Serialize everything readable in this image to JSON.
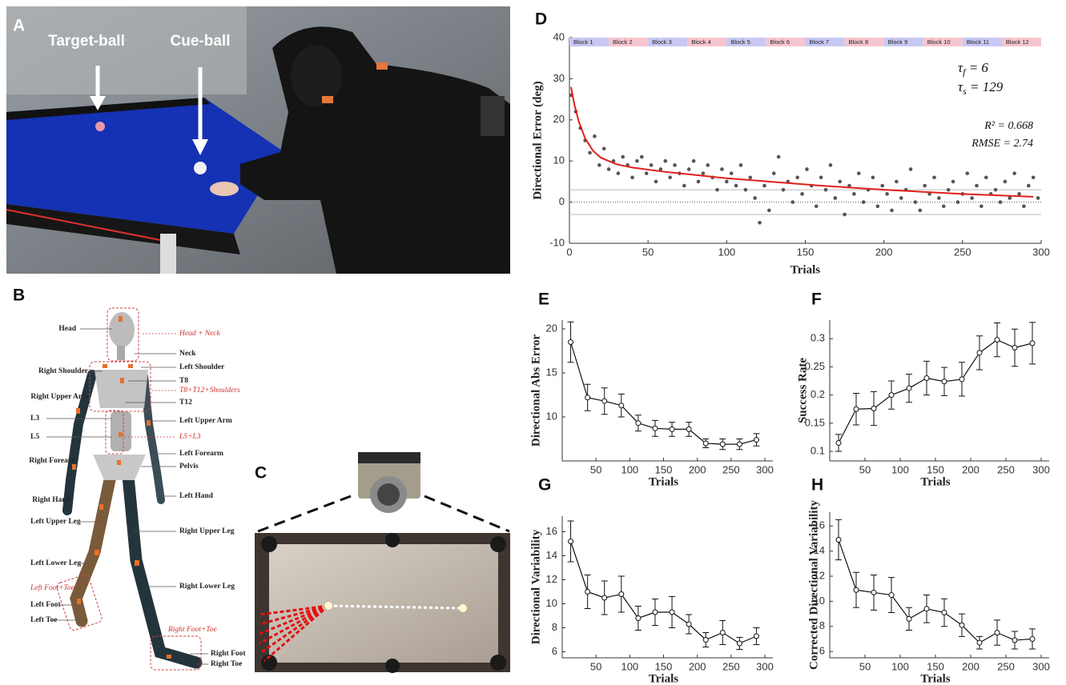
{
  "chart_data": [
    {
      "type": "scatter",
      "panel": "D",
      "x_label": "Trials",
      "y_label": "Directional Error (deg)",
      "x": [
        1,
        4,
        7,
        10,
        13,
        16,
        19,
        22,
        25,
        28,
        31,
        34,
        37,
        40,
        43,
        46,
        49,
        52,
        55,
        58,
        61,
        64,
        67,
        70,
        73,
        76,
        79,
        82,
        85,
        88,
        91,
        94,
        97,
        100,
        103,
        106,
        109,
        112,
        115,
        118,
        121,
        124,
        127,
        130,
        133,
        136,
        139,
        142,
        145,
        148,
        151,
        154,
        157,
        160,
        163,
        166,
        169,
        172,
        175,
        178,
        181,
        184,
        187,
        190,
        193,
        196,
        199,
        202,
        205,
        208,
        211,
        214,
        217,
        220,
        223,
        226,
        229,
        232,
        235,
        238,
        241,
        244,
        247,
        250,
        253,
        256,
        259,
        262,
        265,
        268,
        271,
        274,
        277,
        280,
        283,
        286,
        289,
        292,
        295,
        298
      ],
      "values": [
        26,
        22,
        18,
        15,
        12,
        16,
        9,
        13,
        8,
        10,
        7,
        11,
        9,
        6,
        10,
        11,
        7,
        9,
        5,
        8,
        10,
        6,
        9,
        7,
        4,
        8,
        10,
        5,
        7,
        9,
        6,
        3,
        8,
        5,
        7,
        4,
        9,
        3,
        6,
        1,
        -5,
        4,
        -2,
        7,
        11,
        3,
        5,
        0,
        6,
        2,
        8,
        4,
        -1,
        6,
        3,
        9,
        1,
        5,
        -3,
        4,
        2,
        7,
        0,
        3,
        6,
        -1,
        4,
        2,
        -2,
        5,
        1,
        3,
        8,
        0,
        -2,
        4,
        2,
        6,
        1,
        -1,
        3,
        5,
        0,
        2,
        7,
        1,
        4,
        -1,
        6,
        2,
        3,
        0,
        5,
        1,
        7,
        2,
        -1,
        4,
        6,
        1
      ],
      "color": "#555555",
      "fit": {
        "x": [
          1,
          3,
          6,
          10,
          15,
          20,
          30,
          40,
          60,
          80,
          100,
          130,
          160,
          200,
          250,
          295
        ],
        "values": [
          28,
          24,
          19.5,
          15.5,
          12.5,
          10.8,
          9.2,
          8.4,
          7.4,
          6.6,
          5.8,
          4.9,
          4.0,
          3.0,
          2.0,
          1.3
        ],
        "color": "#e0201c"
      },
      "reference_lines": [
        3,
        -3
      ],
      "zero_line": 0,
      "blocks": [
        "Block 1",
        "Block 2",
        "Block 3",
        "Block 4",
        "Block 5",
        "Block 6",
        "Block 7",
        "Block 8",
        "Block 9",
        "Block 10",
        "Block 11",
        "Block 12"
      ],
      "block_colors": [
        "#c8c8f4",
        "#f6c6cf"
      ],
      "fit_params": [
        {
          "symbol": "τ",
          "sub": "f",
          "rest": " = 6"
        },
        {
          "symbol": "τ",
          "sub": "s",
          "rest": " = 129"
        }
      ],
      "stats": [
        "R² = 0.668",
        "RMSE = 2.74"
      ],
      "xlim": [
        0,
        300
      ],
      "xticks": [
        0,
        50,
        100,
        150,
        200,
        250,
        300
      ],
      "ylim": [
        -10,
        40
      ],
      "yticks": [
        -10,
        0,
        10,
        20,
        30,
        40
      ]
    },
    {
      "type": "errorline",
      "panel": "E",
      "x_label": "Trials",
      "y_label": "Directional Abs Error",
      "x": [
        12.5,
        37.5,
        62.5,
        87.5,
        112.5,
        137.5,
        162.5,
        187.5,
        212.5,
        237.5,
        262.5,
        287.5
      ],
      "values": [
        18.5,
        12.2,
        11.8,
        11.3,
        9.3,
        8.7,
        8.6,
        8.6,
        7.0,
        6.9,
        6.9,
        7.4
      ],
      "errors": [
        2.3,
        1.5,
        1.5,
        1.3,
        0.9,
        0.9,
        0.8,
        0.8,
        0.5,
        0.6,
        0.6,
        0.7
      ],
      "color": "#111111",
      "xlim": [
        0,
        300
      ],
      "xticks": [
        50,
        100,
        150,
        200,
        250,
        300
      ],
      "ylim": [
        5,
        21
      ],
      "yticks": [
        10,
        15,
        20
      ]
    },
    {
      "type": "errorline",
      "panel": "F",
      "x_label": "Trials",
      "y_label": "Success Rate",
      "x": [
        12.5,
        37.5,
        62.5,
        87.5,
        112.5,
        137.5,
        162.5,
        187.5,
        212.5,
        237.5,
        262.5,
        287.5
      ],
      "values": [
        0.115,
        0.175,
        0.176,
        0.2,
        0.212,
        0.23,
        0.224,
        0.228,
        0.275,
        0.298,
        0.284,
        0.292
      ],
      "errors": [
        0.015,
        0.028,
        0.03,
        0.025,
        0.025,
        0.03,
        0.025,
        0.03,
        0.03,
        0.03,
        0.033,
        0.037
      ],
      "color": "#111111",
      "xlim": [
        0,
        300
      ],
      "xticks": [
        50,
        100,
        150,
        200,
        250,
        300
      ],
      "ylim": [
        0.083,
        0.333
      ],
      "yticks": [
        0.1,
        0.15,
        0.2,
        0.25,
        0.3
      ]
    },
    {
      "type": "errorline",
      "panel": "G",
      "x_label": "Trials",
      "y_label": "Directional Variability",
      "x": [
        12.5,
        37.5,
        62.5,
        87.5,
        112.5,
        137.5,
        162.5,
        187.5,
        212.5,
        237.5,
        262.5,
        287.5
      ],
      "values": [
        15.2,
        11.0,
        10.5,
        10.8,
        8.8,
        9.3,
        9.3,
        8.3,
        7.0,
        7.6,
        6.7,
        7.3
      ],
      "errors": [
        1.7,
        1.4,
        1.4,
        1.5,
        1.0,
        1.1,
        1.3,
        0.8,
        0.6,
        1.0,
        0.5,
        0.7
      ],
      "color": "#111111",
      "xlim": [
        0,
        300
      ],
      "xticks": [
        50,
        100,
        150,
        200,
        250,
        300
      ],
      "ylim": [
        5.5,
        17.3
      ],
      "yticks": [
        6,
        8,
        10,
        12,
        14,
        16
      ]
    },
    {
      "type": "errorline",
      "panel": "H",
      "x_label": "Trials",
      "y_label": "Corrected Directional Variability",
      "x": [
        12.5,
        37.5,
        62.5,
        87.5,
        112.5,
        137.5,
        162.5,
        187.5,
        212.5,
        237.5,
        262.5,
        287.5
      ],
      "values": [
        14.9,
        10.9,
        10.7,
        10.5,
        8.6,
        9.4,
        9.1,
        8.1,
        6.7,
        7.5,
        6.9,
        7.0
      ],
      "errors": [
        1.6,
        1.4,
        1.4,
        1.4,
        0.9,
        1.1,
        1.1,
        0.9,
        0.5,
        1.0,
        0.7,
        0.8
      ],
      "color": "#111111",
      "xlim": [
        0,
        300
      ],
      "xticks": [
        50,
        100,
        150,
        200,
        250,
        300
      ],
      "ylim": [
        5.5,
        17.1
      ],
      "yticks": [
        6,
        8,
        10,
        12,
        14,
        16
      ]
    }
  ],
  "photo_a": {
    "panel": "A",
    "labels": [
      "Target-ball",
      "Cue-ball"
    ]
  },
  "body_model": {
    "panel": "B",
    "segment_labels": [
      "Head",
      "Neck",
      "Left Shoulder",
      "Right Shoulder",
      "T8",
      "Right Upper Arm",
      "T12",
      "L3",
      "Left Upper Arm",
      "L5",
      "Left Forearm",
      "Right Forearm",
      "Pelvis",
      "Right Hand",
      "Left Hand",
      "Left Upper Leg",
      "Right Upper Leg",
      "Left Lower Leg",
      "Right Lower Leg",
      "Left Foot",
      "Left Toe",
      "Right Foot",
      "Right Toe"
    ],
    "group_labels": [
      "Head + Neck",
      "T8+T12+Shoulders",
      "L5+L3",
      "Left Foot+Toe",
      "Right Foot+Toe"
    ]
  },
  "camera_view": {
    "panel": "C"
  }
}
